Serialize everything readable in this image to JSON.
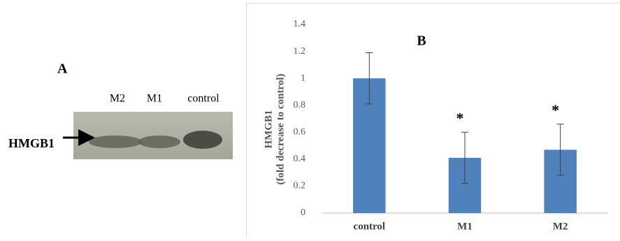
{
  "blot": {
    "panel_label": "A",
    "lanes": [
      "M2",
      "M1",
      "control"
    ],
    "protein": "HMGB1"
  },
  "chart_data": {
    "type": "bar",
    "title": "B",
    "ylabel": [
      "HMGB1",
      "(fold decrease to control)"
    ],
    "categories": [
      "control",
      "M1",
      "M2"
    ],
    "values": [
      1.0,
      0.41,
      0.47
    ],
    "errors": [
      0.19,
      0.19,
      0.19
    ],
    "significance": [
      null,
      "*",
      "*"
    ],
    "color": "#4f81bd",
    "ylim": [
      0,
      1.4
    ],
    "yticks": [
      0,
      0.2,
      0.4,
      0.6,
      0.8,
      1,
      1.2,
      1.4
    ],
    "grid": false
  }
}
